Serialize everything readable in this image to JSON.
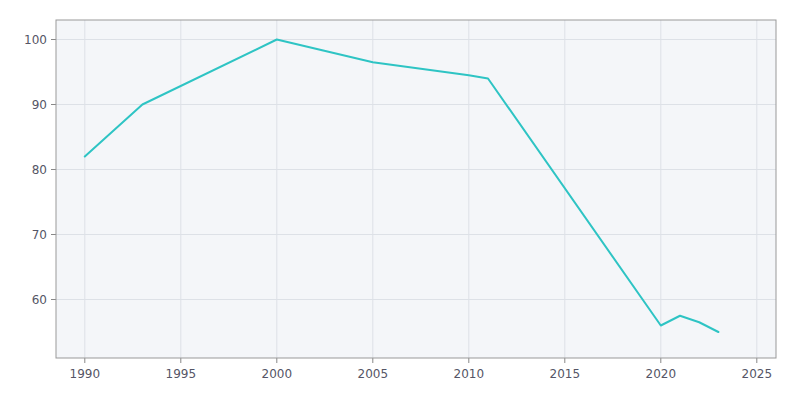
{
  "chart_data": {
    "type": "line",
    "x": [
      1990,
      1993,
      2000,
      2005,
      2010,
      2011,
      2020,
      2021,
      2022,
      2023
    ],
    "values": [
      82,
      90,
      100,
      96.5,
      94.5,
      94,
      56,
      57.5,
      56.5,
      55
    ],
    "color": "#2EC4C4",
    "xlim": [
      1988.5,
      2026
    ],
    "ylim": [
      51,
      103
    ],
    "xticks": [
      1990,
      1995,
      2000,
      2005,
      2010,
      2015,
      2020,
      2025
    ],
    "yticks": [
      60,
      70,
      80,
      90,
      100
    ],
    "grid": true
  }
}
